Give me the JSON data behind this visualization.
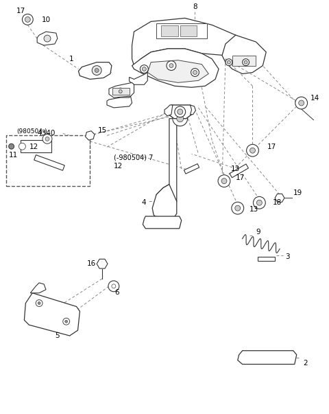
{
  "bg_color": "#ffffff",
  "line_color": "#333333",
  "dashed_color": "#888888",
  "text_color": "#000000",
  "fig_width": 4.8,
  "fig_height": 6.03,
  "dpi": 100
}
